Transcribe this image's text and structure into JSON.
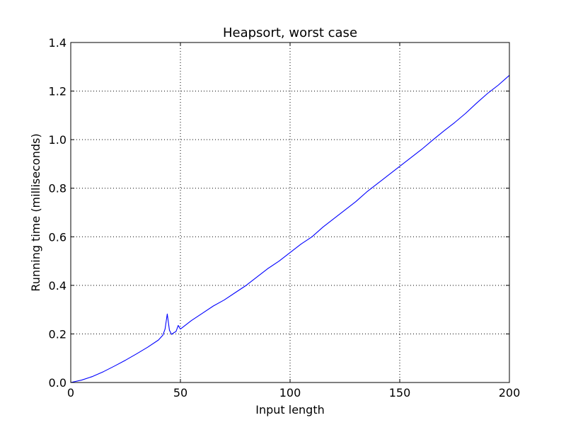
{
  "chart_data": {
    "type": "line",
    "title": "Heapsort, worst case",
    "xlabel": "Input length",
    "ylabel": "Running time (milliseconds)",
    "xlim": [
      0,
      200
    ],
    "ylim": [
      0,
      1.4
    ],
    "xticks": [
      0,
      50,
      100,
      150,
      200
    ],
    "yticks": [
      0.0,
      0.2,
      0.4,
      0.6,
      0.8,
      1.0,
      1.2,
      1.4
    ],
    "xtick_labels": [
      "0",
      "50",
      "100",
      "150",
      "200"
    ],
    "ytick_labels": [
      "0.0",
      "0.2",
      "0.4",
      "0.6",
      "0.8",
      "1.0",
      "1.2",
      "1.4"
    ],
    "grid": true,
    "series": [
      {
        "color": "#0000ff",
        "x": [
          0,
          5,
          10,
          15,
          20,
          25,
          30,
          35,
          40,
          42,
          43,
          44,
          45,
          46,
          47,
          48,
          49,
          50,
          55,
          60,
          65,
          70,
          75,
          80,
          85,
          90,
          95,
          100,
          105,
          110,
          115,
          120,
          125,
          130,
          135,
          140,
          145,
          150,
          155,
          160,
          165,
          170,
          175,
          180,
          185,
          190,
          195,
          200
        ],
        "y": [
          0.0,
          0.01,
          0.025,
          0.045,
          0.068,
          0.092,
          0.118,
          0.145,
          0.175,
          0.195,
          0.22,
          0.282,
          0.215,
          0.198,
          0.205,
          0.21,
          0.235,
          0.22,
          0.255,
          0.285,
          0.315,
          0.34,
          0.37,
          0.4,
          0.435,
          0.47,
          0.5,
          0.535,
          0.57,
          0.6,
          0.64,
          0.675,
          0.71,
          0.745,
          0.785,
          0.82,
          0.855,
          0.89,
          0.925,
          0.96,
          0.998,
          1.035,
          1.07,
          1.108,
          1.15,
          1.19,
          1.225,
          1.265
        ]
      }
    ]
  }
}
